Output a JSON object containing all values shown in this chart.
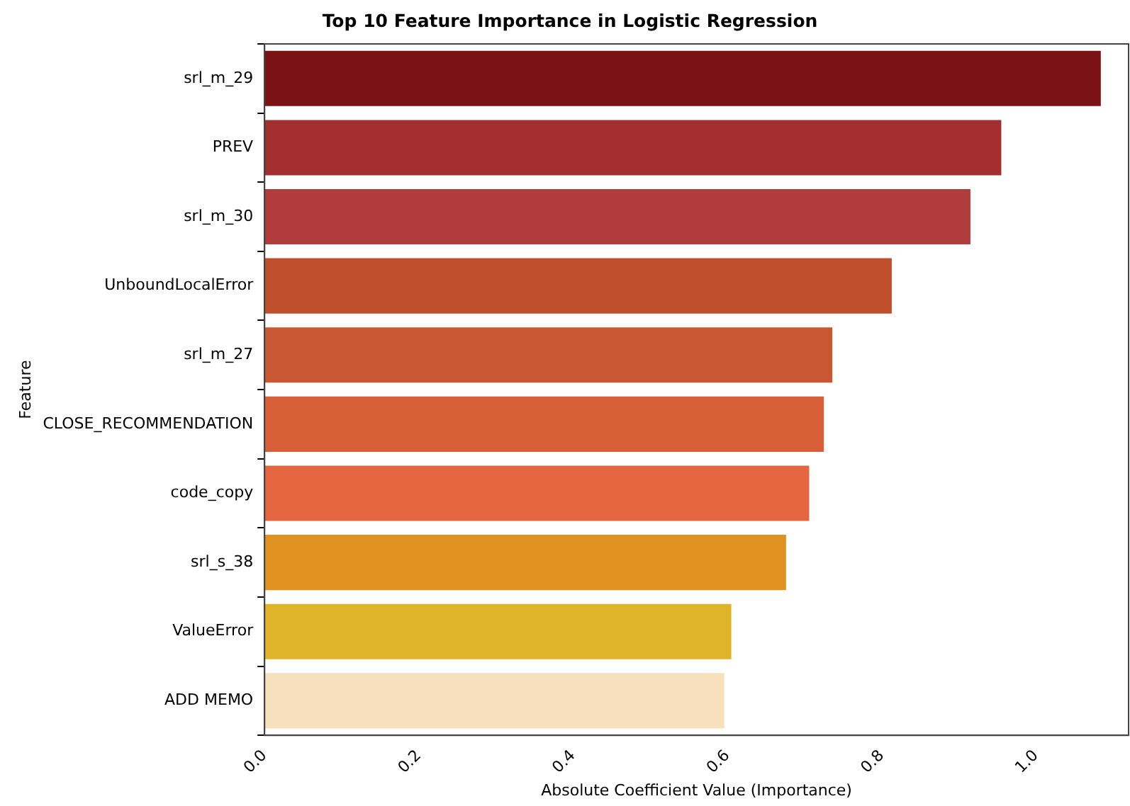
{
  "chart_data": {
    "type": "bar",
    "orientation": "horizontal",
    "title": "Top 10 Feature Importance in Logistic Regression",
    "xlabel": "Absolute Coefficient Value (Importance)",
    "ylabel": "Feature",
    "categories": [
      "srl_m_29",
      "PREV",
      "srl_m_30",
      "UnboundLocalError",
      "srl_m_27",
      "CLOSE_RECOMMENDATION",
      "code_copy",
      "srl_s_38",
      "ValueError",
      "ADD MEMO"
    ],
    "values": [
      1.084,
      0.955,
      0.915,
      0.813,
      0.736,
      0.725,
      0.706,
      0.676,
      0.605,
      0.596
    ],
    "colors": [
      "#7b1214",
      "#a32e2f",
      "#b03c3d",
      "#c0502d",
      "#ca5733",
      "#d95f38",
      "#e36640",
      "#df9220",
      "#e0b428",
      "#f6e0bd"
    ],
    "xlim": [
      0,
      1.12
    ],
    "xticks": [
      {
        "value": 0,
        "label": "0.0"
      },
      {
        "value": 0.2,
        "label": "0.2"
      },
      {
        "value": 0.4,
        "label": "0.4"
      },
      {
        "value": 0.6,
        "label": "0.6"
      },
      {
        "value": 0.8,
        "label": "0.8"
      },
      {
        "value": 1,
        "label": "1.0"
      }
    ],
    "grid": false,
    "legend": false
  }
}
